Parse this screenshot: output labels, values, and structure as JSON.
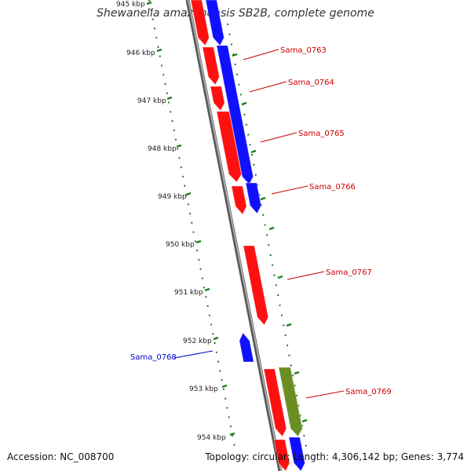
{
  "title": "Shewanella amazonensis SB2B, complete genome",
  "footer": {
    "accession": "Accession: NC_008700",
    "summary": "Topology: circular; Length: 4,306,142 bp; Genes: 3,774"
  },
  "colors": {
    "backbone": "#7a7a7a",
    "tick": "#1e7d1e",
    "forward_gene": "#ff1010",
    "reverse_gene": "#1010ff",
    "rna_gene": "#6b8e23",
    "forward_label": "#cc0000",
    "reverse_label": "#0000cc"
  },
  "scale": {
    "unit": "kbp",
    "labels": [
      "945 kbp",
      "946 kbp",
      "947 kbp",
      "948 kbp",
      "949 kbp",
      "950 kbp",
      "951 kbp",
      "952 kbp",
      "953 kbp",
      "954 kbp"
    ]
  },
  "genes": [
    {
      "name": "Sama_0763",
      "strand": "forward"
    },
    {
      "name": "Sama_0764",
      "strand": "forward"
    },
    {
      "name": "Sama_0765",
      "strand": "forward"
    },
    {
      "name": "Sama_0766",
      "strand": "forward"
    },
    {
      "name": "Sama_0767",
      "strand": "forward"
    },
    {
      "name": "Sama_0768",
      "strand": "reverse"
    },
    {
      "name": "Sama_0769",
      "strand": "forward"
    }
  ]
}
